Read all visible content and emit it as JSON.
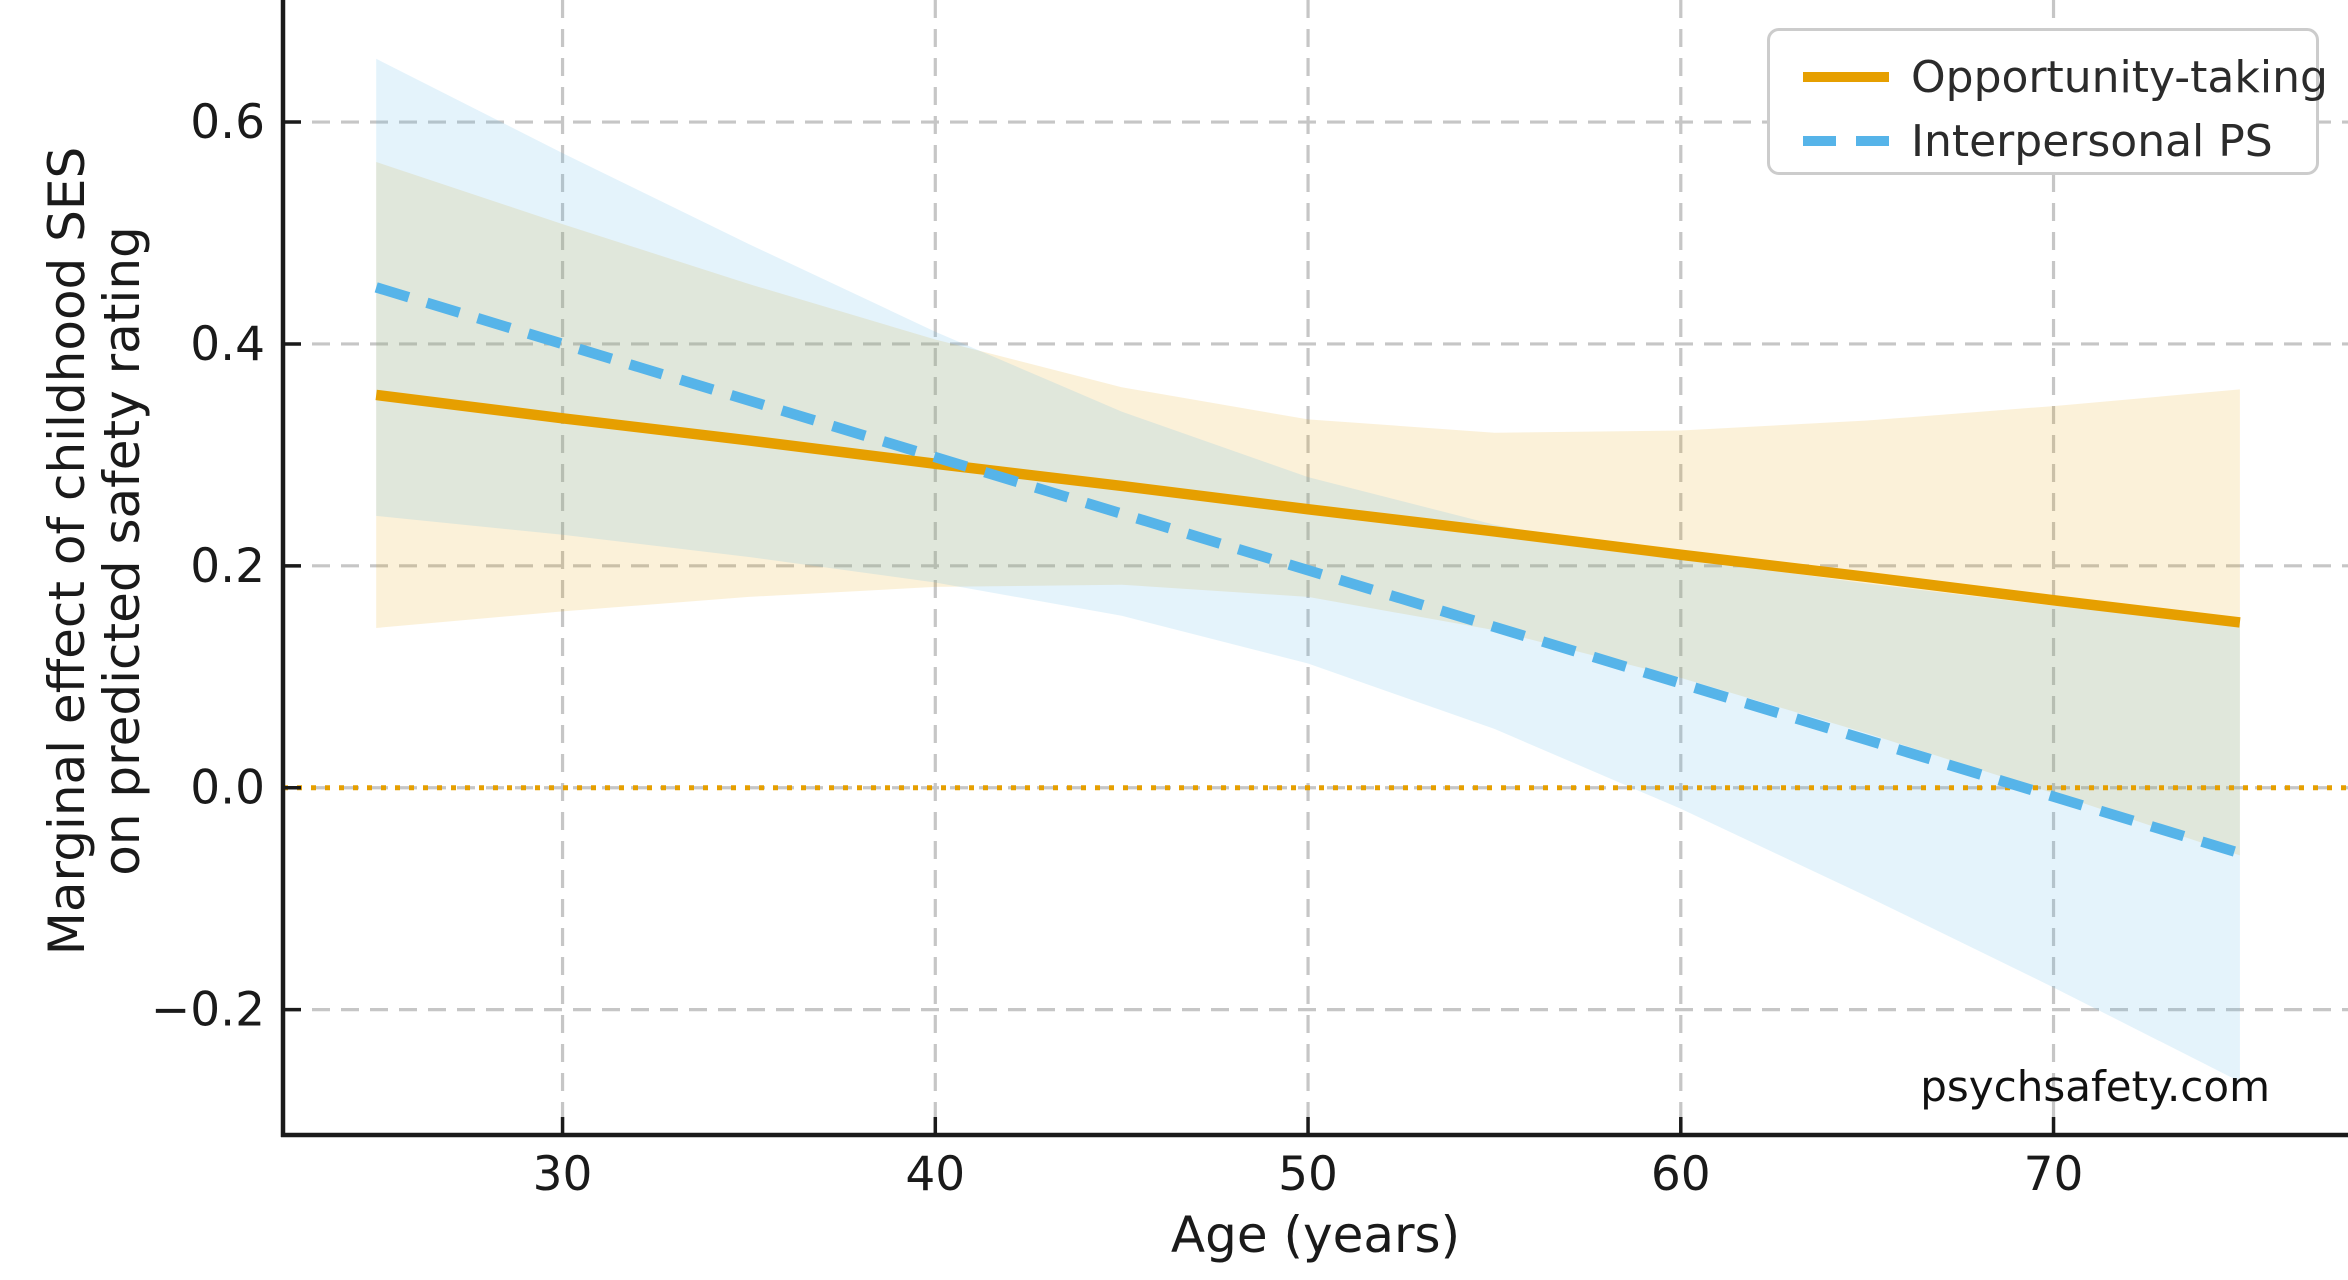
{
  "chart_data": {
    "type": "line",
    "title": "",
    "xlabel": "Age (years)",
    "ylabel_line1": "Marginal effect of childhood SES",
    "ylabel_line2": "on predicted safety rating",
    "watermark": "psychsafety.com",
    "x": [
      25,
      30,
      35,
      40,
      45,
      50,
      55,
      60,
      65,
      70,
      75
    ],
    "series": [
      {
        "name": "Opportunity-taking",
        "color": "#E69F00",
        "style": "solid",
        "band_opacity": 0.15,
        "values": [
          0.354,
          0.333,
          0.313,
          0.292,
          0.272,
          0.251,
          0.231,
          0.21,
          0.19,
          0.169,
          0.149
        ],
        "band_low": [
          0.144,
          0.159,
          0.172,
          0.181,
          0.183,
          0.172,
          0.142,
          0.099,
          0.049,
          -0.005,
          -0.061
        ],
        "band_high": [
          0.564,
          0.508,
          0.454,
          0.404,
          0.361,
          0.332,
          0.32,
          0.322,
          0.331,
          0.344,
          0.359
        ]
      },
      {
        "name": "Interpersonal PS",
        "color": "#56B4E9",
        "style": "dashed",
        "band_opacity": 0.16,
        "values": [
          0.451,
          0.4,
          0.349,
          0.298,
          0.247,
          0.196,
          0.145,
          0.094,
          0.043,
          -0.008,
          -0.059
        ],
        "band_low": [
          0.245,
          0.228,
          0.208,
          0.185,
          0.155,
          0.112,
          0.053,
          -0.019,
          -0.098,
          -0.18,
          -0.265
        ],
        "band_high": [
          0.657,
          0.572,
          0.49,
          0.411,
          0.339,
          0.28,
          0.237,
          0.207,
          0.184,
          0.164,
          0.147
        ]
      }
    ],
    "x_ticks": [
      30,
      40,
      50,
      60,
      70
    ],
    "y_ticks": [
      -0.2,
      0.0,
      0.2,
      0.4,
      0.6
    ],
    "xlim": [
      22.5,
      77.9
    ],
    "ylim": [
      -0.313,
      0.71
    ],
    "zero_line": 0.0,
    "grid": true,
    "legend_position": "upper right"
  },
  "colors": {
    "accent_orange": "#E69F00",
    "accent_blue": "#56B4E9",
    "gridline": "#c6c6c6",
    "spine": "#1a1a1a",
    "legend_border": "#cccccc",
    "text": "#1a1a1a"
  }
}
